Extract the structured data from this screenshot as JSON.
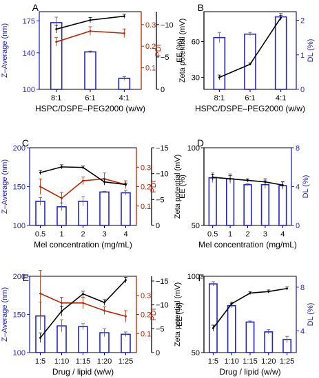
{
  "chart_data": [
    {
      "panel": "A",
      "type": "bar",
      "categories": [
        "8:1",
        "6:1",
        "4:1"
      ],
      "xlabel": "HSPC/DSPE–PEG2000   (w/w)",
      "axes": {
        "left": {
          "label": "Z–Average (nm)",
          "color": "#2222cc",
          "lim": [
            100,
            185
          ],
          "ticks": [
            100,
            140,
            175
          ]
        },
        "right": [
          {
            "label": "PDI",
            "color": "#bb2200",
            "lim": [
              0,
              0.36
            ],
            "ticks": [
              0.1,
              0.2,
              0.3
            ],
            "tick_labels": [
              "0.1",
              "0.2",
              "0.3"
            ]
          },
          {
            "label": "Zeta potential (mV)",
            "color": "#000000",
            "lim": [
              0,
              12
            ],
            "ticks": [
              0,
              5,
              10
            ],
            "tick_labels": [
              "0",
              "−5",
              "−10"
            ]
          }
        ]
      },
      "series": [
        {
          "name": "Z-Average",
          "kind": "bar",
          "axis": "left",
          "color": "#2222cc",
          "values": [
            173,
            141,
            112
          ],
          "errors": [
            6,
            1,
            2
          ]
        },
        {
          "name": "PDI",
          "kind": "line",
          "axis": "right0",
          "color": "#bb2200",
          "values": [
            0.22,
            0.27,
            0.26
          ],
          "errors": [
            0.02,
            0.02,
            0.02
          ]
        },
        {
          "name": "Zeta potential",
          "kind": "line",
          "axis": "right1",
          "color": "#000000",
          "values": [
            9.3,
            10.7,
            11.3
          ],
          "errors": [
            0.6,
            0.4,
            0.3
          ]
        }
      ]
    },
    {
      "panel": "B",
      "type": "bar",
      "categories": [
        "8:1",
        "6:1",
        "4:1"
      ],
      "xlabel": "HSPC/DSPE–PEG2000  (w/w)",
      "axes": {
        "left": {
          "label": "EE (%)",
          "color": "#000000",
          "lim": [
            20,
            85
          ],
          "ticks": [
            30,
            60
          ],
          "tick_labels": [
            "30",
            "60"
          ]
        },
        "right": [
          {
            "label": "DL (%)",
            "color": "#2222cc",
            "lim": [
              0,
              2.25
            ],
            "ticks": [
              0,
              1,
              2
            ],
            "tick_labels": [
              "0",
              "1",
              "2"
            ]
          }
        ]
      },
      "series": [
        {
          "name": "DL",
          "kind": "bar",
          "axis": "right0",
          "color": "#2222cc",
          "values": [
            1.5,
            1.6,
            2.1
          ],
          "errors": [
            0.15,
            0.05,
            0.1
          ]
        },
        {
          "name": "EE",
          "kind": "line",
          "axis": "left",
          "color": "#000000",
          "values": [
            30,
            41,
            80
          ],
          "errors": [
            2,
            1,
            2
          ]
        }
      ]
    },
    {
      "panel": "C",
      "type": "bar",
      "categories": [
        "0.5",
        "1",
        "2",
        "3",
        "4"
      ],
      "xlabel": "Mel concentration (mg/mL)",
      "axes": {
        "left": {
          "label": "Z–Average (nm)",
          "color": "#2222cc",
          "lim": [
            100,
            200
          ],
          "ticks": [
            100,
            150,
            200
          ]
        },
        "right": [
          {
            "label": "PDI",
            "color": "#bb2200",
            "lim": [
              0,
              0.4
            ],
            "ticks": [
              0.1,
              0.2,
              0.3
            ],
            "tick_labels": [
              "0.1",
              "0.2",
              "0.3"
            ]
          },
          {
            "label": "Zeta potential (mV)",
            "color": "#000000",
            "lim": [
              0,
              15
            ],
            "ticks": [
              0,
              5,
              10,
              15
            ],
            "tick_labels": [
              "0",
              "−5",
              "−10",
              "−15"
            ]
          }
        ]
      },
      "series": [
        {
          "name": "Z-Average",
          "kind": "bar",
          "axis": "left",
          "color": "#2222cc",
          "values": [
            131,
            124,
            131,
            143,
            142
          ],
          "errors": [
            5,
            5,
            6,
            1,
            3
          ]
        },
        {
          "name": "PDI",
          "kind": "line",
          "axis": "right0",
          "color": "#bb2200",
          "values": [
            0.2,
            0.14,
            0.23,
            0.24,
            0.21
          ],
          "errors": [
            0.04,
            0.03,
            0.02,
            0.03,
            0.02
          ]
        },
        {
          "name": "Zeta potential",
          "kind": "line",
          "axis": "right1",
          "color": "#000000",
          "values": [
            10.2,
            11.3,
            11.2,
            8.4,
            7.9
          ],
          "errors": [
            0.4,
            0.4,
            0.3,
            0.6,
            0.3
          ]
        }
      ]
    },
    {
      "panel": "D",
      "type": "bar",
      "categories": [
        "0.5",
        "1",
        "2",
        "3",
        "4"
      ],
      "xlabel": "Mel concentration (mg/mL)",
      "axes": {
        "left": {
          "label": "EE (%)",
          "color": "#000000",
          "lim": [
            50,
            100
          ],
          "ticks": [
            50,
            100
          ],
          "tick_labels": [
            "50",
            "100"
          ]
        },
        "right": [
          {
            "label": "DL (%)",
            "color": "#2222cc",
            "lim": [
              0,
              8
            ],
            "ticks": [
              0,
              4,
              8
            ],
            "tick_labels": [
              "0",
              "4",
              "8"
            ]
          }
        ]
      },
      "series": [
        {
          "name": "DL",
          "kind": "bar",
          "axis": "right0",
          "color": "#2222cc",
          "values": [
            4.9,
            4.8,
            4.2,
            4.2,
            4.1
          ],
          "errors": [
            0.5,
            0.5,
            0.1,
            0.4,
            0.4
          ]
        },
        {
          "name": "EE",
          "kind": "line",
          "axis": "left",
          "color": "#000000",
          "values": [
            81,
            80,
            79,
            78,
            76
          ],
          "errors": [
            2,
            2,
            1,
            2,
            2
          ]
        }
      ]
    },
    {
      "panel": "E",
      "type": "bar",
      "categories": [
        "1:5",
        "1:10",
        "1:15",
        "1:20",
        "1:25"
      ],
      "xlabel": "Drug / lipid (w/w)",
      "axes": {
        "left": {
          "label": "Z–Average (nm)",
          "color": "#2222cc",
          "lim": [
            100,
            200
          ],
          "ticks": [
            100,
            150,
            200
          ]
        },
        "right": [
          {
            "label": "PDI",
            "color": "#bb2200",
            "lim": [
              0,
              0.4
            ],
            "ticks": [
              0.1,
              0.2,
              0.3
            ],
            "tick_labels": [
              "0.1",
              "0.2",
              "0.3"
            ]
          },
          {
            "label": "Zeta potential (mV)",
            "color": "#000000",
            "lim": [
              0,
              16
            ],
            "ticks": [
              0,
              5,
              10,
              15
            ],
            "tick_labels": [
              "0",
              "−5",
              "−10",
              "−15"
            ]
          }
        ]
      },
      "series": [
        {
          "name": "Z-Average",
          "kind": "bar",
          "axis": "left",
          "color": "#2222cc",
          "values": [
            148,
            135,
            134,
            126,
            124
          ],
          "errors": [
            18,
            8,
            4,
            5,
            3
          ]
        },
        {
          "name": "PDI",
          "kind": "line",
          "axis": "right0",
          "color": "#bb2200",
          "values": [
            0.31,
            0.26,
            0.26,
            0.22,
            0.19
          ],
          "errors": [
            0.12,
            0.03,
            0.03,
            0.02,
            0.03
          ]
        },
        {
          "name": "Zeta potential",
          "kind": "line",
          "axis": "right1",
          "color": "#000000",
          "values": [
            3.1,
            8.7,
            12.3,
            10.5,
            15.2
          ],
          "errors": [
            1,
            1,
            0.6,
            0.6,
            0.6
          ]
        }
      ]
    },
    {
      "panel": "F",
      "type": "bar",
      "categories": [
        "1:5",
        "1:10",
        "1:15",
        "1:20",
        "1:25"
      ],
      "xlabel": "Drug / lipid  (w/w)",
      "axes": {
        "left": {
          "label": "EE (%)",
          "color": "#000000",
          "lim": [
            50,
            100
          ],
          "ticks": [
            50,
            100
          ],
          "tick_labels": [
            "50",
            "100"
          ]
        },
        "right": [
          {
            "label": "DL (%)",
            "color": "#2222cc",
            "lim": [
              2,
              9
            ],
            "ticks": [
              4,
              8
            ],
            "tick_labels": [
              "4",
              "8"
            ]
          }
        ]
      },
      "series": [
        {
          "name": "DL",
          "kind": "bar",
          "axis": "right0",
          "color": "#2222cc",
          "values": [
            8.3,
            6.3,
            4.8,
            3.9,
            3.2
          ],
          "errors": [
            0.2,
            0.2,
            0.1,
            0.2,
            0.3
          ]
        },
        {
          "name": "EE",
          "kind": "line",
          "axis": "left",
          "color": "#000000",
          "values": [
            66,
            82,
            89,
            90,
            92
          ],
          "errors": [
            2,
            1,
            1,
            1,
            1
          ]
        }
      ]
    }
  ]
}
